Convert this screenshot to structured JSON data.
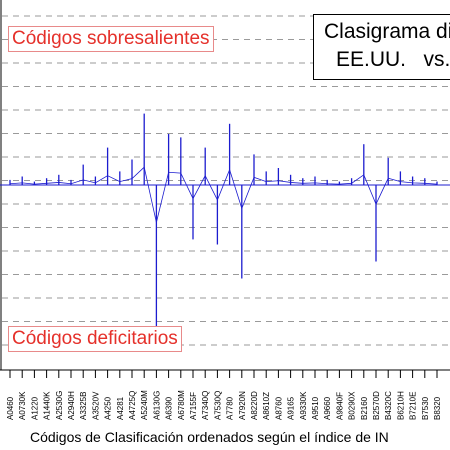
{
  "chart_data": {
    "type": "line",
    "title": [
      "Clasigrama di",
      "EE.UU.   vs."
    ],
    "xlabel": "Códigos de Clasificación ordenados según el índice de IN",
    "ylabel": "",
    "annotations": {
      "top": "Códigos sobresalientes",
      "bottom": "Códigos deficitarios"
    },
    "categories": [
      "A0460",
      "A0730K",
      "A1220",
      "A1440K",
      "A2530G",
      "A2940H",
      "A3325B",
      "A3520V",
      "A4250",
      "A4281",
      "A4725Q",
      "A5240M",
      "A6130G",
      "A6390",
      "A6780M",
      "A7155F",
      "A7340Q",
      "A7530Q",
      "A7780",
      "A7920N",
      "A8220D",
      "A8610Z",
      "A8760",
      "A9165",
      "A9330K",
      "A9510",
      "A9660",
      "A9840F",
      "B0290X",
      "B2160",
      "B2570D",
      "B4320C",
      "B6210H",
      "B7210E",
      "B7530",
      "B8320"
    ],
    "grid": true,
    "series_color": "#1c1ccf",
    "grid_color": "#9a9a9a",
    "series": [
      {
        "values": [
          0.03,
          0.05,
          0.02,
          0.04,
          0.06,
          0.03,
          0.12,
          0.05,
          0.22,
          0.08,
          0.15,
          0.42,
          -0.88,
          0.3,
          0.28,
          -0.32,
          0.22,
          -0.35,
          0.36,
          -0.55,
          0.18,
          0.08,
          0.1,
          0.06,
          0.04,
          0.05,
          0.03,
          0.02,
          0.04,
          0.24,
          -0.45,
          0.16,
          0.08,
          0.05,
          0.04,
          0.02
        ]
      }
    ]
  }
}
